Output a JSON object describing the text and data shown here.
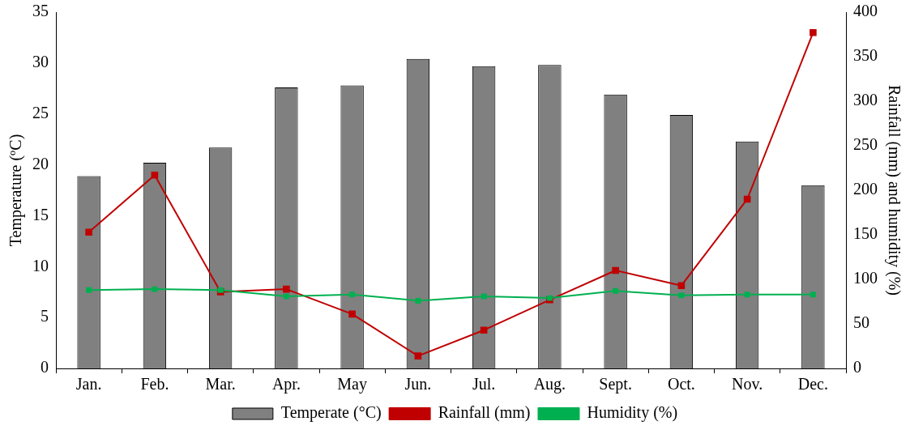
{
  "chart_data": {
    "type": "bar",
    "ylabel": "Temperature (ºC)",
    "y2label": "Rainfall (mm) and humidity (%)",
    "categories": [
      "Jan.",
      "Feb.",
      "Mar.",
      "Apr.",
      "May",
      "Jun.",
      "Jul.",
      "Aug.",
      "Sept.",
      "Oct.",
      "Nov.",
      "Dec."
    ],
    "series": [
      {
        "name": "Temperate (°C)",
        "color": "#808080",
        "values": [
          18.9,
          20.2,
          21.7,
          27.6,
          27.8,
          30.4,
          29.7,
          29.8,
          26.9,
          24.9,
          22.3,
          18.0
        ]
      },
      {
        "name": "Rainfall (mm)",
        "type": "line",
        "axis": "y2",
        "color": "#c00000",
        "values": [
          153,
          217,
          86,
          89,
          61,
          14,
          43,
          77,
          110,
          93,
          190,
          377
        ]
      },
      {
        "name": "Humidity (%)",
        "type": "line",
        "axis": "y2",
        "color": "#00b050",
        "values": [
          88,
          89,
          88,
          81,
          83,
          76,
          81,
          79,
          87,
          82,
          83,
          83
        ]
      }
    ],
    "ylim": [
      0,
      35
    ],
    "yticks": [
      0,
      5,
      10,
      15,
      20,
      25,
      30,
      35
    ],
    "y2lim": [
      0,
      400
    ],
    "y2ticks": [
      0,
      50,
      100,
      150,
      200,
      250,
      300,
      350,
      400
    ],
    "grid": false,
    "legend": "bottom",
    "marker": "square",
    "line_style": "solid"
  }
}
